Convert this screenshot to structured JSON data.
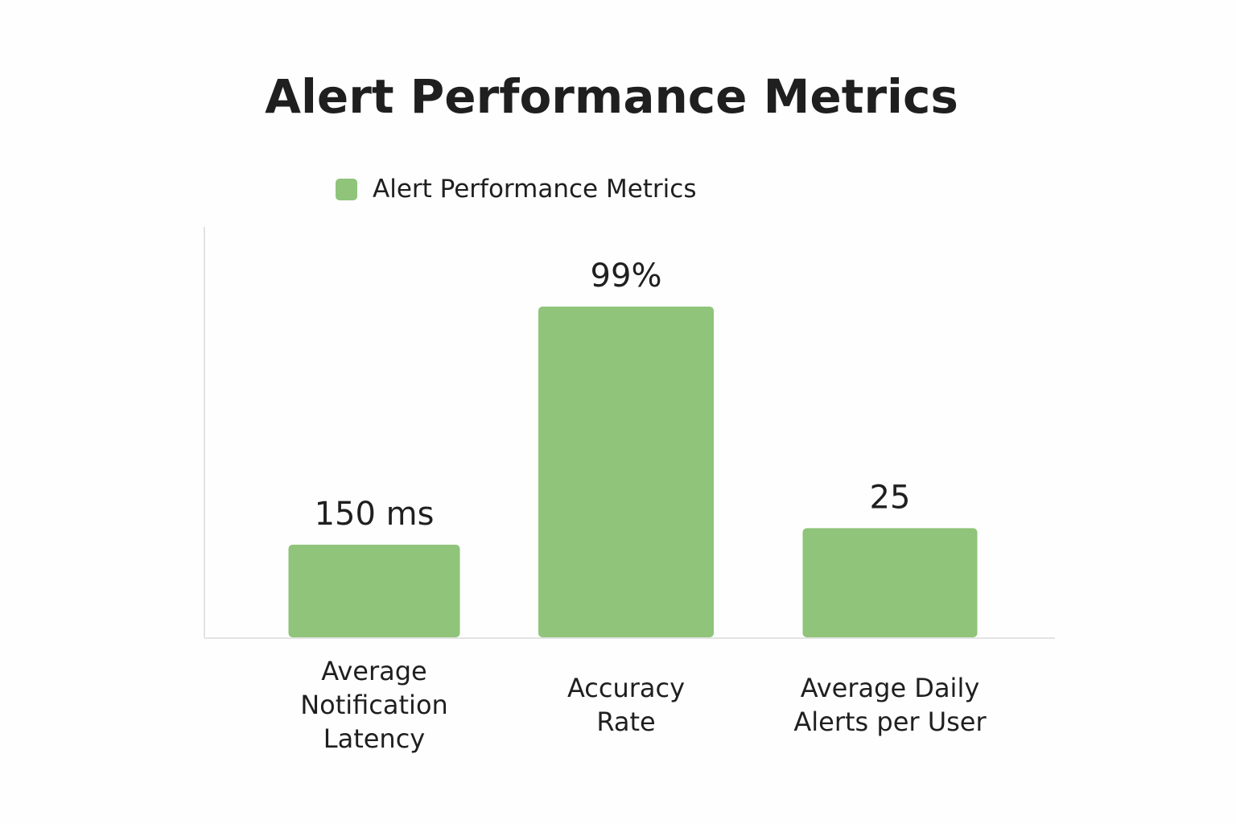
{
  "chart_data": {
    "type": "bar",
    "title": "Alert Performance Metrics",
    "legend": {
      "position": "top",
      "entries": [
        {
          "label": "Alert Performance Metrics",
          "color": "#8fc47a"
        }
      ]
    },
    "categories": [
      [
        "Average",
        "Notification",
        "Latency"
      ],
      [
        "Accuracy",
        "Rate"
      ],
      [
        "Average Daily",
        "Alerts per User"
      ]
    ],
    "series": [
      {
        "name": "Alert Performance Metrics",
        "values": [
          0.28,
          1.0,
          0.33
        ],
        "value_labels": [
          "150 ms",
          "99%",
          "25"
        ]
      }
    ],
    "value_scale": "relative bar height (tallest bar = 1.0); bars show metrics in different units",
    "grid": false,
    "colors": {
      "bar": "#8fc47a",
      "axis": "#e3e3e3",
      "text": "#1f1f1f"
    }
  }
}
